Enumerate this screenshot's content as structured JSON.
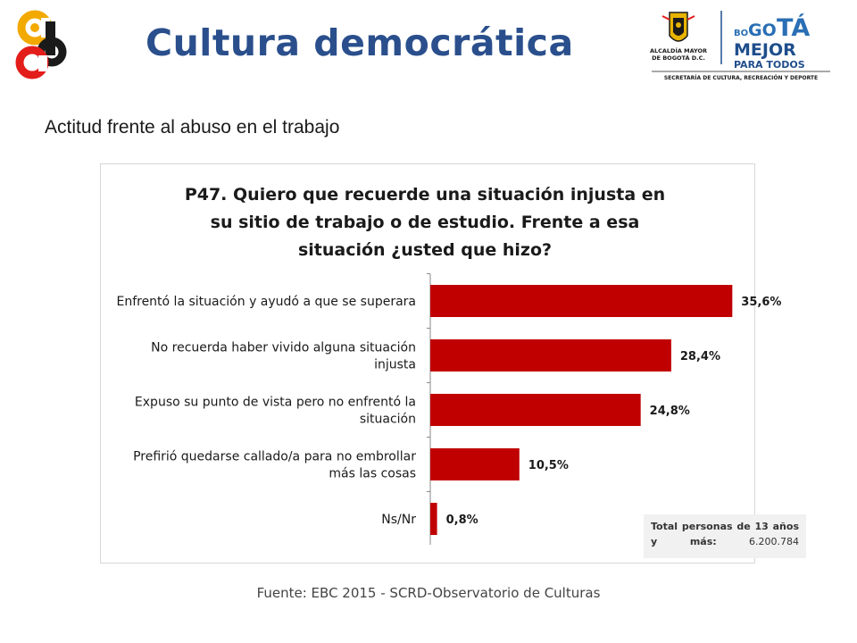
{
  "header": {
    "title": "Cultura democrática",
    "logo_colors": [
      "#f2a900",
      "#e31d1a",
      "#1a1a1a"
    ]
  },
  "brand": {
    "alcaldia_line1": "ALCALDÍA MAYOR",
    "alcaldia_line2": "DE BOGOTÁ D.C.",
    "bogota_prefix": "BO",
    "bogota_go": "GO",
    "bogota_ta": "TÁ",
    "mejor": "MEJOR",
    "para_todos": "PARA TODOS",
    "secretaria": "SECRETARÍA DE CULTURA, RECREACIÓN Y DEPORTE"
  },
  "subtitle": "Actitud frente al abuso en el trabajo",
  "note": {
    "label": "Total personas de 13 años y más:",
    "value": "6.200.784"
  },
  "source": "Fuente: EBC 2015 - SCRD-Observatorio de Culturas",
  "chart_data": {
    "type": "bar",
    "orientation": "horizontal",
    "title_lines": [
      "P47. Quiero que recuerde una situación injusta en",
      "su sitio de trabajo o de estudio. Frente a esa",
      "situación ¿usted que hizo?"
    ],
    "categories": [
      [
        "Enfrentó la situación y ayudó a que se superara"
      ],
      [
        "No recuerda haber vivido alguna situación",
        "injusta"
      ],
      [
        "Expuso su punto de vista pero no enfrentó la",
        "situación"
      ],
      [
        "Prefirió quedarse callado/a para no embrollar",
        "más las cosas"
      ],
      [
        "Ns/Nr"
      ]
    ],
    "values": [
      35.6,
      28.4,
      24.8,
      10.5,
      0.8
    ],
    "value_labels": [
      "35,6%",
      "28,4%",
      "24,8%",
      "10,5%",
      "0,8%"
    ],
    "unit": "%",
    "bar_color": "#c00000",
    "xlim": [
      0,
      40
    ]
  }
}
